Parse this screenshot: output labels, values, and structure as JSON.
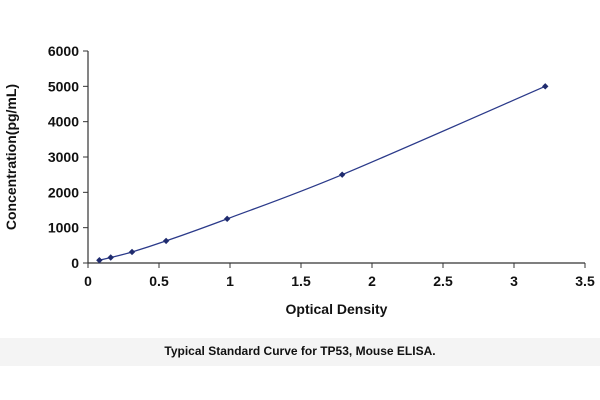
{
  "caption": "Typical Standard Curve for TP53, Mouse ELISA.",
  "chart_data": {
    "type": "scatter",
    "title": "",
    "xlabel": "Optical Density",
    "ylabel": "Concentration(pg/mL)",
    "xlim": [
      0,
      3.5
    ],
    "ylim": [
      0,
      6000
    ],
    "xticks": [
      0,
      0.5,
      1,
      1.5,
      2,
      2.5,
      3,
      3.5
    ],
    "xtick_labels": [
      "0",
      "0.5",
      "1",
      "1.5",
      "2",
      "2.5",
      "3",
      "3.5"
    ],
    "yticks": [
      0,
      1000,
      2000,
      3000,
      4000,
      5000,
      6000
    ],
    "ytick_labels": [
      "0",
      "1000",
      "2000",
      "3000",
      "4000",
      "5000",
      "6000"
    ],
    "grid": false,
    "legend": "none",
    "trendline": "smooth curve through points",
    "colors": {
      "marker": "#1f2b6e",
      "line": "#2b3a8a",
      "axis": "#333333"
    },
    "series": [
      {
        "x": [
          0.08,
          0.16,
          0.31,
          0.55,
          0.98,
          1.79,
          3.22
        ],
        "y": [
          78,
          156,
          312,
          625,
          1250,
          2500,
          5000
        ]
      }
    ]
  }
}
